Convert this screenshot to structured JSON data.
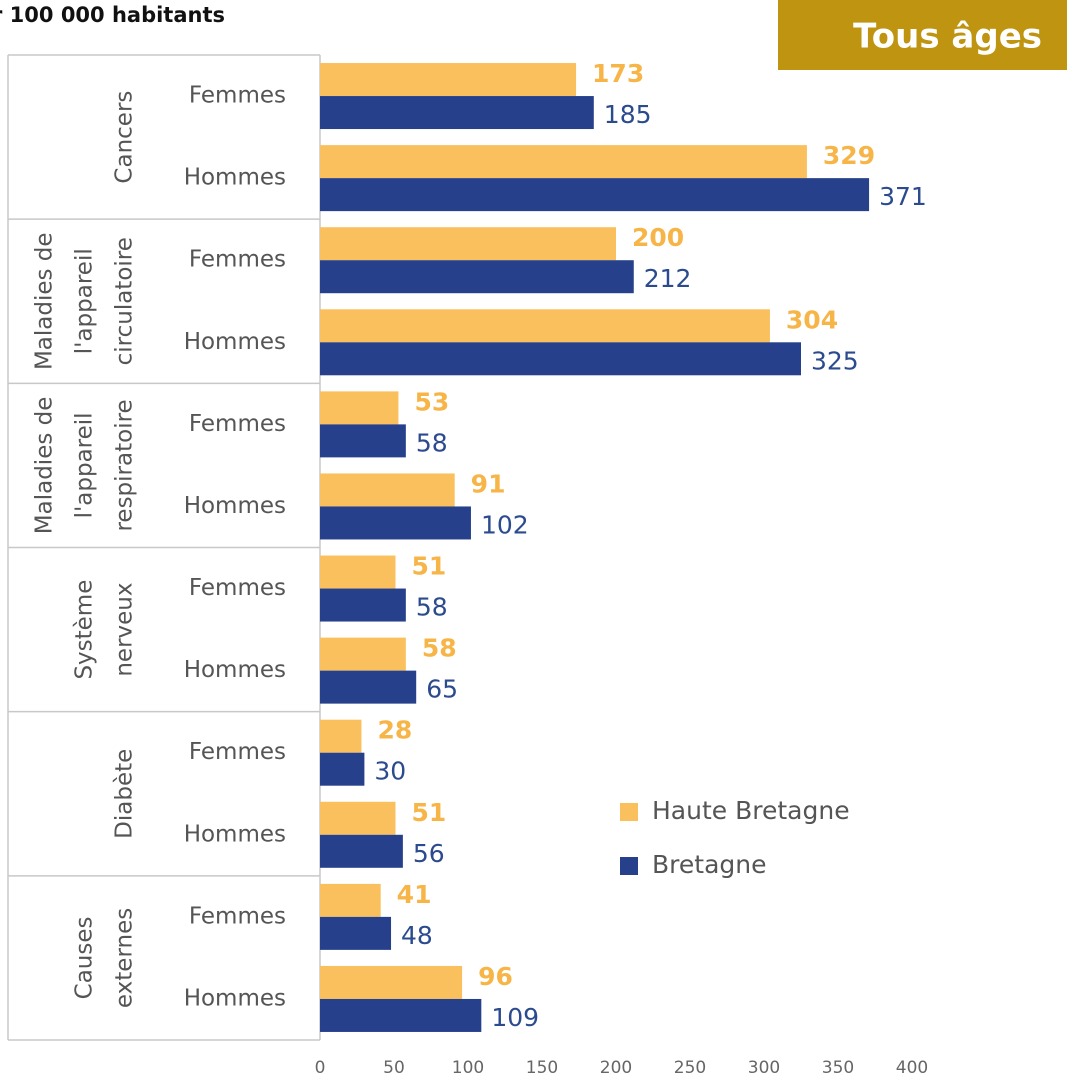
{
  "chart_data": {
    "type": "hbar-grouped",
    "title": "r 100 000 habitants",
    "badge": "Tous âges",
    "groups": [
      [
        "Cancers"
      ],
      [
        "Maladies de",
        "l'appareil",
        "circulatoire"
      ],
      [
        "Maladies de",
        "l'appareil",
        "respiratoire"
      ],
      [
        "Système",
        "nerveux"
      ],
      [
        "Diabète"
      ],
      [
        "Causes",
        "externes"
      ]
    ],
    "categories": [
      "Femmes",
      "Hommes",
      "Femmes",
      "Hommes",
      "Femmes",
      "Hommes",
      "Femmes",
      "Hommes",
      "Femmes",
      "Hommes",
      "Femmes",
      "Hommes"
    ],
    "series": [
      {
        "name": "Haute Bretagne",
        "color": "#f9c05d",
        "label_color": "#f7b548",
        "values": [
          173,
          329,
          200,
          304,
          53,
          91,
          51,
          58,
          28,
          51,
          41,
          96
        ]
      },
      {
        "name": "Bretagne",
        "color": "#27408b",
        "label_color": "#2c4a8e",
        "values": [
          185,
          371,
          212,
          325,
          58,
          102,
          58,
          65,
          30,
          56,
          48,
          109
        ]
      }
    ],
    "xlim": [
      0,
      400
    ],
    "xticks": [
      0,
      50,
      100,
      150,
      200,
      250,
      300,
      350,
      400
    ]
  }
}
